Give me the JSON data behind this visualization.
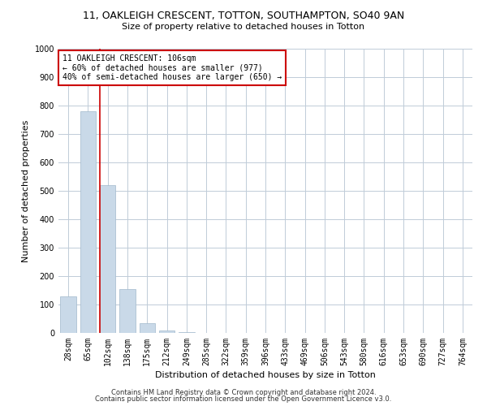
{
  "title1": "11, OAKLEIGH CRESCENT, TOTTON, SOUTHAMPTON, SO40 9AN",
  "title2": "Size of property relative to detached houses in Totton",
  "xlabel": "Distribution of detached houses by size in Totton",
  "ylabel": "Number of detached properties",
  "categories": [
    "28sqm",
    "65sqm",
    "102sqm",
    "138sqm",
    "175sqm",
    "212sqm",
    "249sqm",
    "285sqm",
    "322sqm",
    "359sqm",
    "396sqm",
    "433sqm",
    "469sqm",
    "506sqm",
    "543sqm",
    "580sqm",
    "616sqm",
    "653sqm",
    "690sqm",
    "727sqm",
    "764sqm"
  ],
  "values": [
    130,
    780,
    520,
    155,
    35,
    10,
    2,
    0,
    0,
    0,
    0,
    0,
    0,
    0,
    0,
    0,
    0,
    0,
    0,
    0,
    0
  ],
  "bar_color": "#c9d9e8",
  "bar_edge_color": "#a0b8cc",
  "vline_color": "#cc0000",
  "vline_pos": 1.58,
  "ylim": [
    0,
    1000
  ],
  "yticks": [
    0,
    100,
    200,
    300,
    400,
    500,
    600,
    700,
    800,
    900,
    1000
  ],
  "annotation_text": "11 OAKLEIGH CRESCENT: 106sqm\n← 60% of detached houses are smaller (977)\n40% of semi-detached houses are larger (650) →",
  "annotation_box_color": "#ffffff",
  "annotation_border_color": "#cc0000",
  "footer1": "Contains HM Land Registry data © Crown copyright and database right 2024.",
  "footer2": "Contains public sector information licensed under the Open Government Licence v3.0.",
  "background_color": "#ffffff",
  "grid_color": "#c0ccd8",
  "title1_fontsize": 9,
  "title2_fontsize": 8,
  "xlabel_fontsize": 8,
  "ylabel_fontsize": 8,
  "tick_fontsize": 7,
  "ann_fontsize": 7,
  "footer_fontsize": 6
}
